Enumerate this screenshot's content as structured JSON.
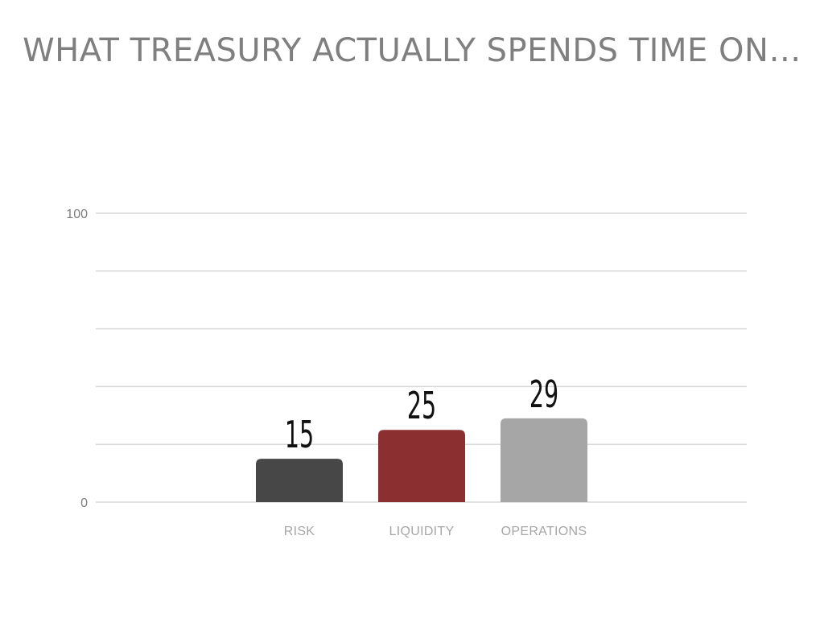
{
  "slide": {
    "title": "WHAT TREASURY ACTUALLY SPENDS TIME ON…"
  },
  "chart_data": {
    "type": "bar",
    "title": "",
    "xlabel": "",
    "ylabel": "",
    "categories": [
      "RISK",
      "LIQUIDITY",
      "OPERATIONS"
    ],
    "values": [
      15,
      25,
      29
    ],
    "ylim": [
      0,
      100
    ],
    "yticks_labeled": [
      0,
      100
    ],
    "gridlines": [
      0,
      20,
      40,
      60,
      80,
      100
    ],
    "grid": true,
    "legend": "none",
    "colors": [
      "#474747",
      "#8b2f31",
      "#a6a6a6"
    ],
    "gridline_color": "#d9d9d9"
  }
}
